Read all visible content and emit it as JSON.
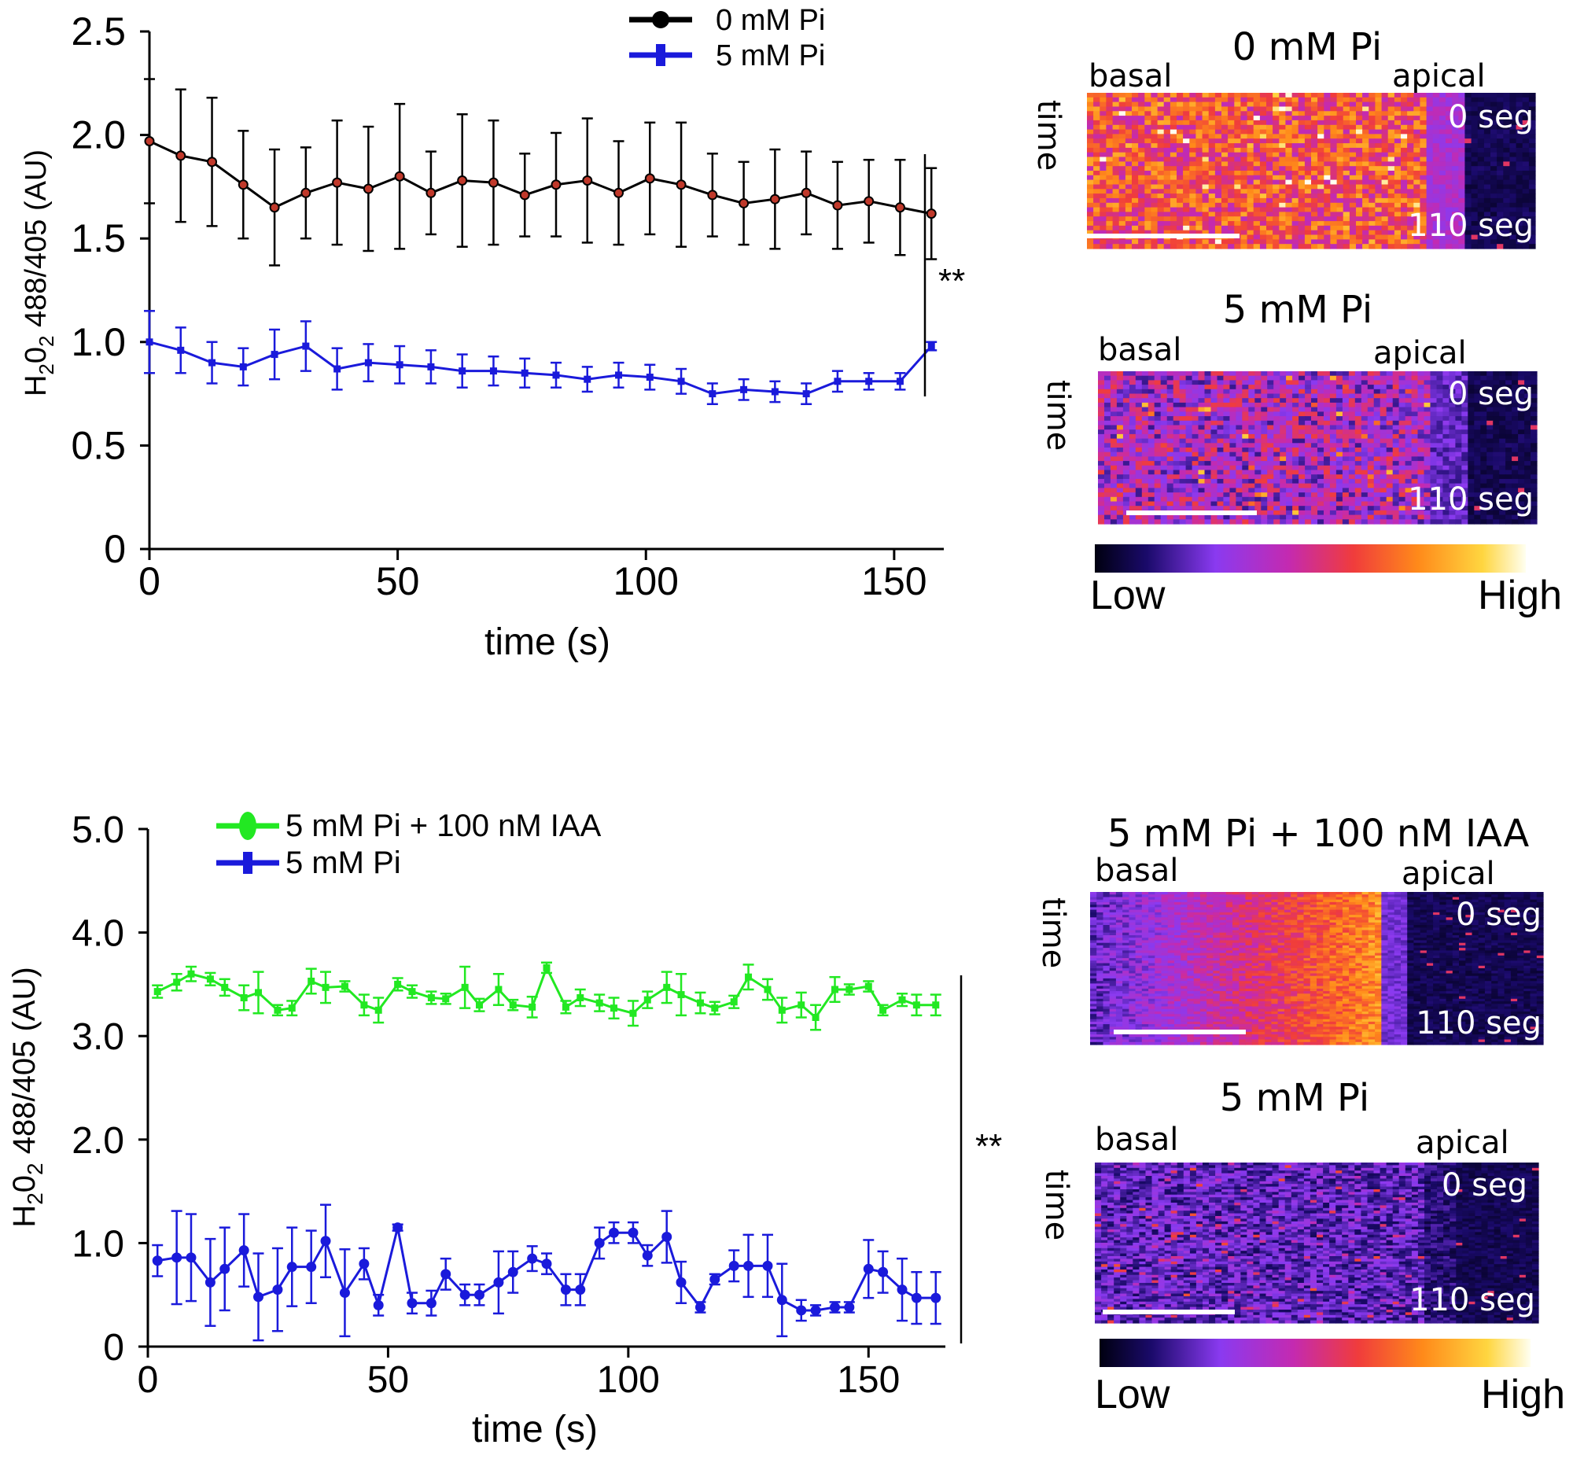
{
  "chart_data": [
    {
      "type": "line",
      "panel": "top",
      "ylabel_main": "H",
      "ylabel_sub1": "2",
      "ylabel_mid": "0",
      "ylabel_sub2": "2",
      "ylabel_rest": " 488/405 (AU)",
      "xlabel": "time (s)",
      "xlim": [
        0,
        160
      ],
      "ylim": [
        0,
        2.5
      ],
      "xticks": [
        "0",
        "50",
        "100",
        "150"
      ],
      "xtick_values": [
        0,
        50,
        100,
        150
      ],
      "yticks": [
        "0",
        "0.5",
        "1.0",
        "1.5",
        "2.0",
        "2.5"
      ],
      "ytick_values": [
        0,
        0.5,
        1.0,
        1.5,
        2.0,
        2.5
      ],
      "significance": "**",
      "series": [
        {
          "name": "0 mM Pi",
          "color": "#000000",
          "marker_fill": "#c0392b",
          "x": [
            0,
            6.3,
            12.6,
            18.9,
            25.2,
            31.5,
            37.8,
            44.1,
            50.4,
            56.7,
            63,
            69.3,
            75.6,
            81.9,
            88.2,
            94.5,
            100.8,
            107.1,
            113.4,
            119.7,
            126,
            132.3,
            138.6,
            144.9,
            151.2,
            157.5
          ],
          "values": [
            1.97,
            1.9,
            1.87,
            1.76,
            1.65,
            1.72,
            1.77,
            1.74,
            1.8,
            1.72,
            1.78,
            1.77,
            1.71,
            1.76,
            1.78,
            1.72,
            1.79,
            1.76,
            1.71,
            1.67,
            1.69,
            1.72,
            1.66,
            1.68,
            1.65,
            1.62
          ],
          "errors": [
            0.3,
            0.32,
            0.31,
            0.26,
            0.28,
            0.22,
            0.3,
            0.3,
            0.35,
            0.2,
            0.32,
            0.3,
            0.2,
            0.25,
            0.3,
            0.25,
            0.27,
            0.3,
            0.2,
            0.2,
            0.24,
            0.2,
            0.21,
            0.2,
            0.23,
            0.22
          ]
        },
        {
          "name": "5 mM Pi",
          "color": "#1a1adb",
          "x": [
            0,
            6.3,
            12.6,
            18.9,
            25.2,
            31.5,
            37.8,
            44.1,
            50.4,
            56.7,
            63,
            69.3,
            75.6,
            81.9,
            88.2,
            94.5,
            100.8,
            107.1,
            113.4,
            119.7,
            126,
            132.3,
            138.6,
            144.9,
            151.2,
            157.5
          ],
          "values": [
            1.0,
            0.96,
            0.9,
            0.88,
            0.94,
            0.98,
            0.87,
            0.9,
            0.89,
            0.88,
            0.86,
            0.86,
            0.85,
            0.84,
            0.82,
            0.84,
            0.83,
            0.81,
            0.75,
            0.77,
            0.76,
            0.75,
            0.81,
            0.81,
            0.81,
            0.98
          ],
          "errors": [
            0.15,
            0.11,
            0.1,
            0.09,
            0.12,
            0.12,
            0.1,
            0.09,
            0.09,
            0.08,
            0.08,
            0.07,
            0.07,
            0.06,
            0.06,
            0.06,
            0.06,
            0.06,
            0.05,
            0.05,
            0.05,
            0.05,
            0.05,
            0.04,
            0.04,
            0.02
          ]
        }
      ]
    },
    {
      "type": "line",
      "panel": "bottom",
      "ylabel_main": "H",
      "ylabel_sub1": "2",
      "ylabel_mid": "0",
      "ylabel_sub2": "2",
      "ylabel_rest": " 488/405 (AU)",
      "xlabel": "time (s)",
      "xlim": [
        0,
        166
      ],
      "ylim": [
        0,
        5.0
      ],
      "xticks": [
        "0",
        "50",
        "100",
        "150"
      ],
      "xtick_values": [
        0,
        50,
        100,
        150
      ],
      "yticks": [
        "0",
        "1.0",
        "2.0",
        "3.0",
        "4.0",
        "5.0"
      ],
      "ytick_values": [
        0,
        1,
        2,
        3,
        4,
        5
      ],
      "significance": "**",
      "series": [
        {
          "name": "5 mM Pi + 100 nM IAA",
          "color": "#22e822",
          "x": [
            2,
            6,
            9,
            13,
            16,
            20,
            23,
            27,
            30,
            34,
            37,
            41,
            45,
            48,
            52,
            55,
            59,
            62,
            66,
            69,
            73,
            76,
            80,
            83,
            87,
            90,
            94,
            97,
            101,
            104,
            108,
            111,
            115,
            118,
            122,
            125,
            129,
            132,
            136,
            139,
            143,
            146,
            150,
            153,
            157,
            160,
            164
          ],
          "values": [
            3.43,
            3.52,
            3.6,
            3.55,
            3.47,
            3.37,
            3.42,
            3.25,
            3.27,
            3.53,
            3.47,
            3.48,
            3.3,
            3.25,
            3.5,
            3.43,
            3.37,
            3.36,
            3.47,
            3.3,
            3.45,
            3.3,
            3.28,
            3.66,
            3.28,
            3.37,
            3.32,
            3.27,
            3.22,
            3.35,
            3.47,
            3.4,
            3.32,
            3.27,
            3.33,
            3.57,
            3.45,
            3.25,
            3.3,
            3.18,
            3.45,
            3.45,
            3.48,
            3.25,
            3.35,
            3.3,
            3.3
          ],
          "errors": [
            0.06,
            0.08,
            0.07,
            0.06,
            0.08,
            0.12,
            0.2,
            0.05,
            0.07,
            0.12,
            0.15,
            0.05,
            0.1,
            0.12,
            0.06,
            0.06,
            0.06,
            0.05,
            0.2,
            0.06,
            0.15,
            0.05,
            0.1,
            0.05,
            0.06,
            0.08,
            0.08,
            0.1,
            0.12,
            0.08,
            0.15,
            0.2,
            0.1,
            0.06,
            0.06,
            0.12,
            0.1,
            0.12,
            0.12,
            0.12,
            0.12,
            0.05,
            0.05,
            0.05,
            0.06,
            0.1,
            0.1
          ]
        },
        {
          "name": "5 mM Pi",
          "color": "#1a1adb",
          "x": [
            2,
            6,
            9,
            13,
            16,
            20,
            23,
            27,
            30,
            34,
            37,
            41,
            45,
            48,
            52,
            55,
            59,
            62,
            66,
            69,
            73,
            76,
            80,
            83,
            87,
            90,
            94,
            97,
            101,
            104,
            108,
            111,
            115,
            118,
            122,
            125,
            129,
            132,
            136,
            139,
            143,
            146,
            150,
            153,
            157,
            160,
            164
          ],
          "values": [
            0.83,
            0.86,
            0.86,
            0.62,
            0.75,
            0.93,
            0.48,
            0.55,
            0.77,
            0.77,
            1.02,
            0.52,
            0.8,
            0.4,
            1.15,
            0.42,
            0.42,
            0.7,
            0.5,
            0.5,
            0.62,
            0.72,
            0.85,
            0.8,
            0.55,
            0.55,
            1.0,
            1.1,
            1.1,
            0.88,
            1.06,
            0.62,
            0.38,
            0.65,
            0.78,
            0.78,
            0.78,
            0.45,
            0.35,
            0.35,
            0.38,
            0.38,
            0.75,
            0.72,
            0.55,
            0.47,
            0.47
          ],
          "errors": [
            0.15,
            0.45,
            0.42,
            0.42,
            0.4,
            0.35,
            0.42,
            0.4,
            0.38,
            0.35,
            0.35,
            0.42,
            0.15,
            0.1,
            0.03,
            0.1,
            0.12,
            0.15,
            0.1,
            0.1,
            0.3,
            0.2,
            0.12,
            0.1,
            0.15,
            0.15,
            0.15,
            0.1,
            0.1,
            0.1,
            0.25,
            0.2,
            0.05,
            0.05,
            0.15,
            0.3,
            0.3,
            0.35,
            0.1,
            0.05,
            0.05,
            0.05,
            0.28,
            0.2,
            0.3,
            0.25,
            0.25
          ]
        }
      ]
    }
  ],
  "kymographs": [
    {
      "title": "0 mM Pi",
      "basal": "basal",
      "apical": "apical",
      "time": "time",
      "start": "0 seg",
      "end": "110 seg",
      "palette_profile": "high"
    },
    {
      "title": "5 mM Pi",
      "basal": "basal",
      "apical": "apical",
      "time": "time",
      "start": "0 seg",
      "end": "110 seg",
      "palette_profile": "mid"
    },
    {
      "title": "5 mM Pi + 100 nM IAA",
      "basal": "basal",
      "apical": "apical",
      "time": "time",
      "start": "0 seg",
      "end": "110 seg",
      "palette_profile": "gradient"
    },
    {
      "title": "5 mM Pi",
      "basal": "basal",
      "apical": "apical",
      "time": "time",
      "start": "0 seg",
      "end": "110 seg",
      "palette_profile": "low"
    }
  ],
  "colorbars": [
    {
      "low": "Low",
      "high": "High"
    },
    {
      "low": "Low",
      "high": "High"
    }
  ]
}
